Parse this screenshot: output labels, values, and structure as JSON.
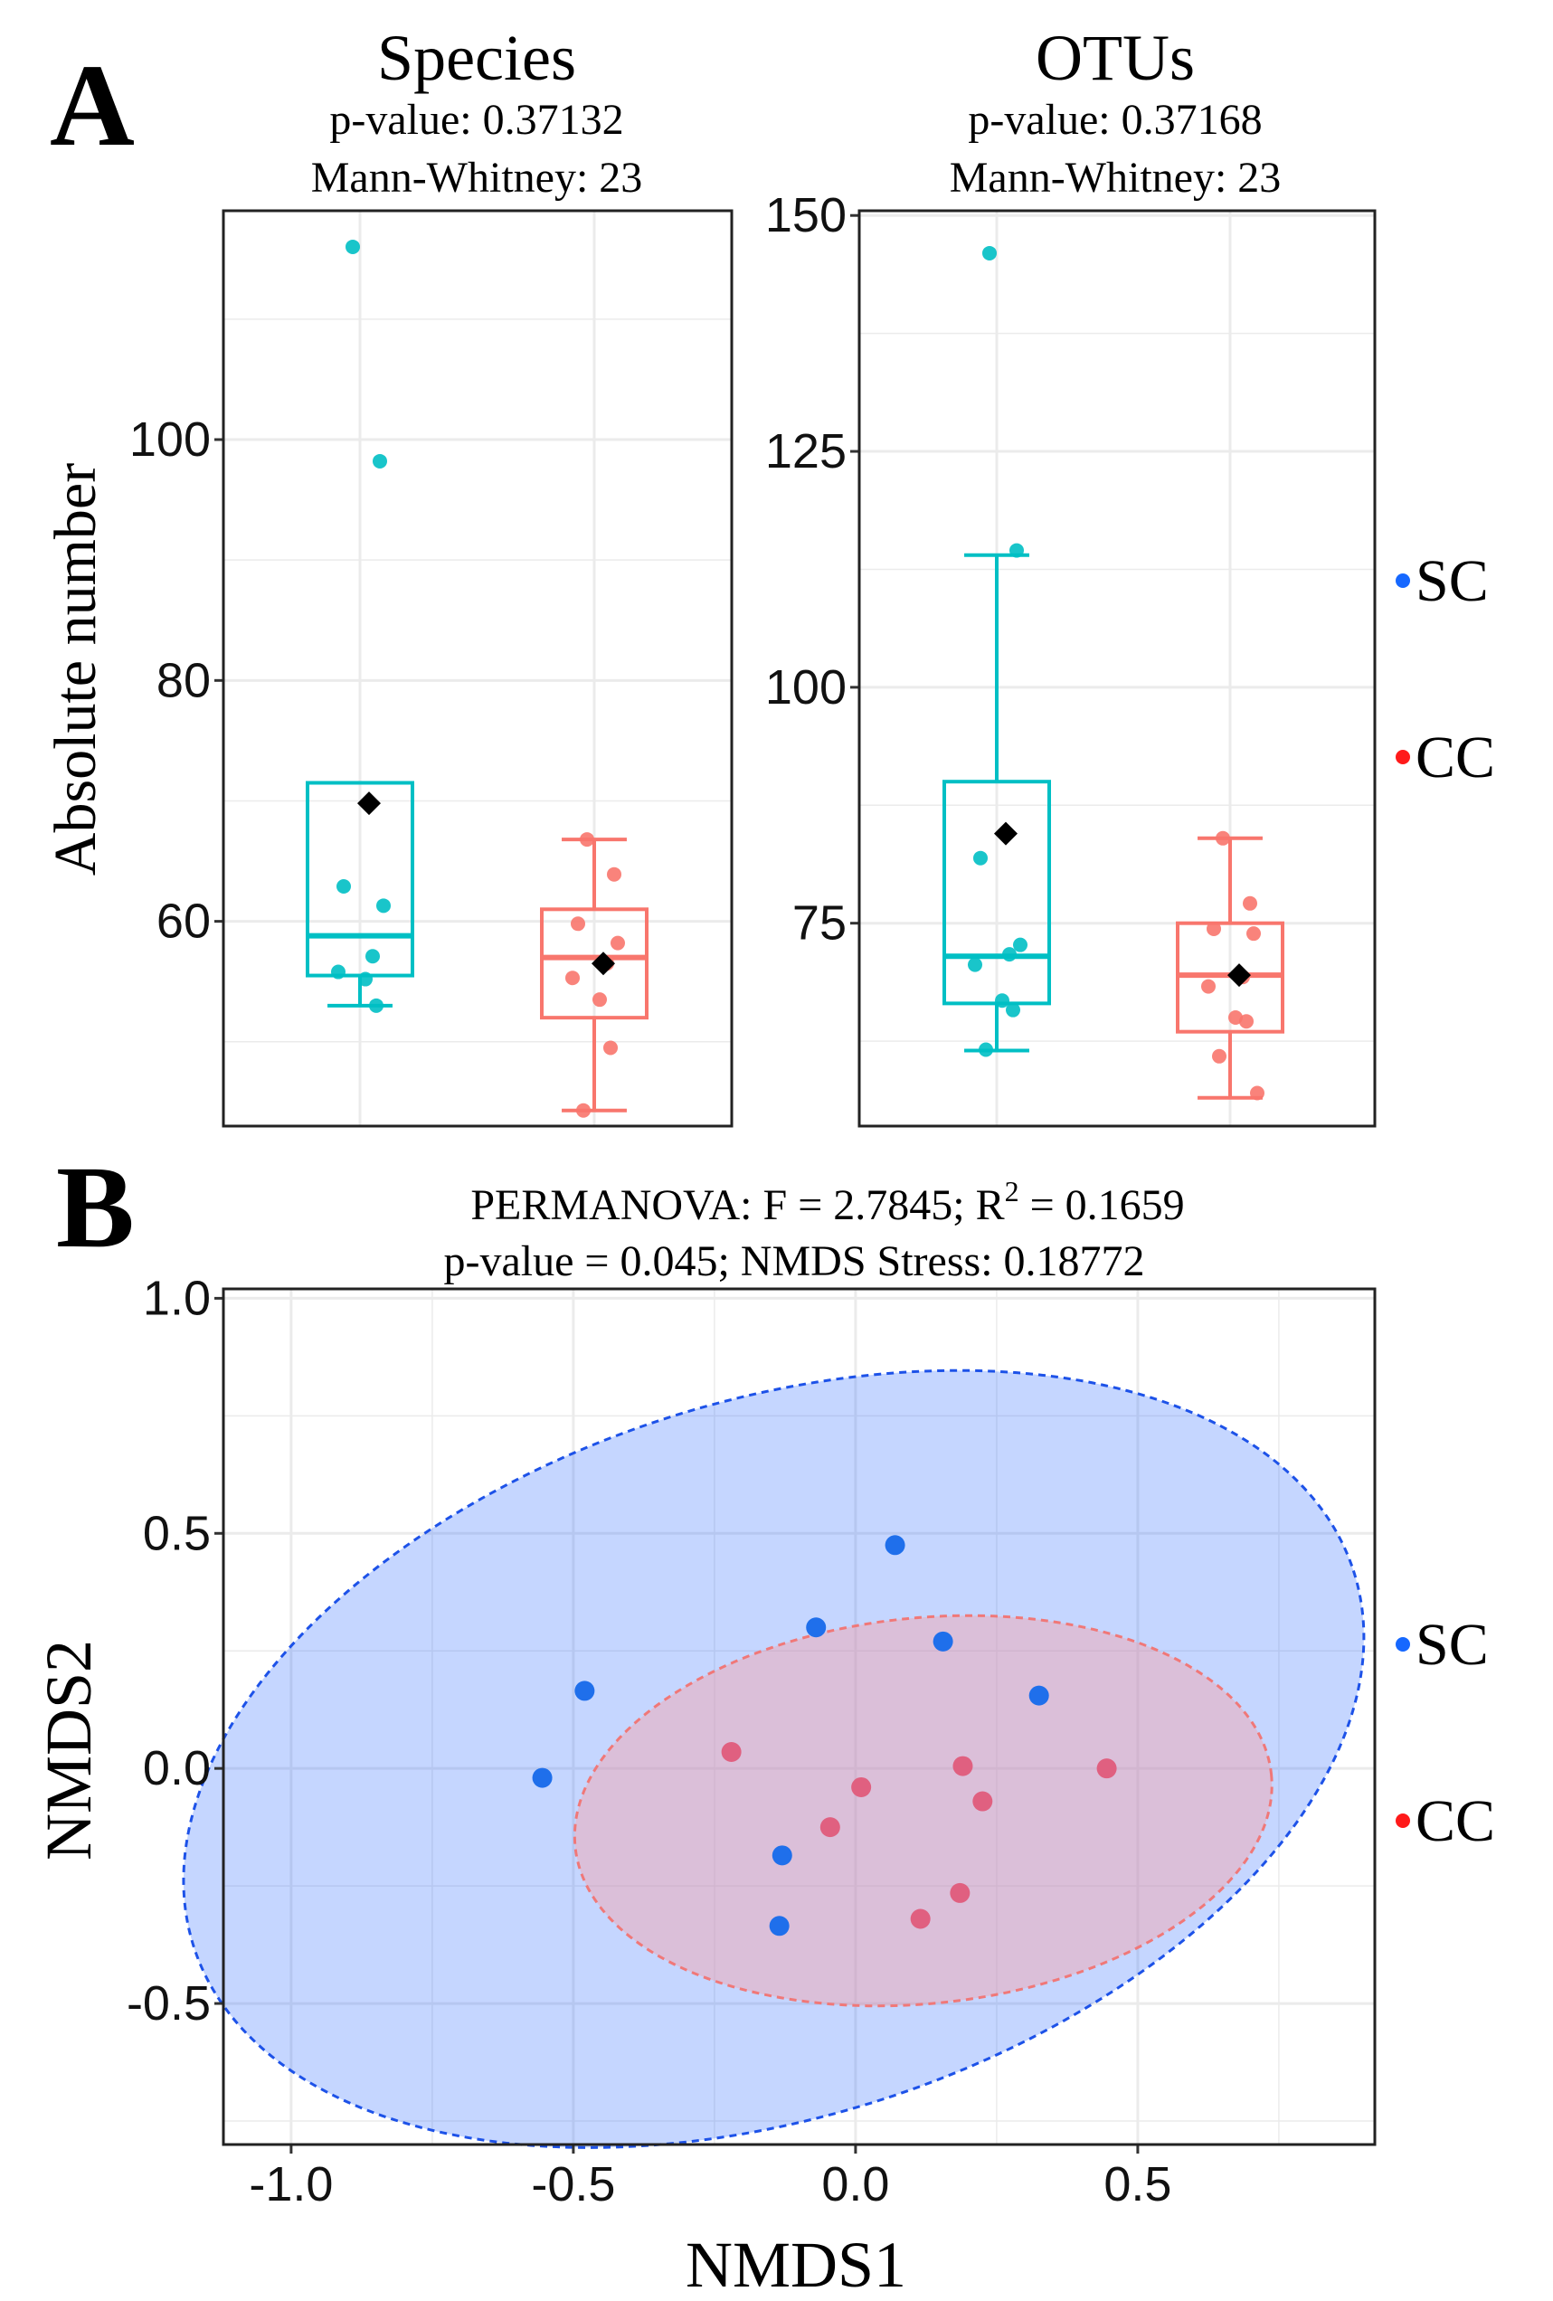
{
  "figure": {
    "panel_a_letter": "A",
    "panel_b_letter": "B",
    "colors": {
      "sc_box": "#00BFC4",
      "cc_box": "#F8766D",
      "sc_point": "#1F6FEB",
      "cc_point": "#E06080",
      "sc_ellipse_fill": "#2F6BFF",
      "cc_ellipse_fill": "#FF9A9A",
      "legend_sc": "#1668FF",
      "legend_cc": "#FF1A1A",
      "mean_marker": "#000000",
      "grid": "#EBEBEB"
    }
  },
  "legend": {
    "items": [
      {
        "label": "SC",
        "color": "#1668FF"
      },
      {
        "label": "CC",
        "color": "#FF1A1A"
      }
    ]
  },
  "chart_data": [
    {
      "type": "box",
      "title": "Species",
      "subtitle_1": "p-value: 0.37132",
      "subtitle_2": "Mann-Whitney: 23",
      "ylabel": "Absolute number",
      "xlabel": "",
      "ylim": [
        43,
        119
      ],
      "yticks": [
        60,
        80,
        100
      ],
      "grid": true,
      "groups": [
        {
          "name": "SC",
          "color": "#00BFC4",
          "q1": 55.5,
          "median": 58.8,
          "q3": 71.5,
          "whisker_low": 53,
          "whisker_high": 71.5,
          "mean": 69.8,
          "points": [
            116,
            98.2,
            62.9,
            61.3,
            57.1,
            55.8,
            55.2,
            53
          ]
        },
        {
          "name": "CC",
          "color": "#F8766D",
          "q1": 52,
          "median": 57,
          "q3": 61,
          "whisker_low": 44.3,
          "whisker_high": 66.8,
          "mean": 56.5,
          "points": [
            66.8,
            63.9,
            59.8,
            58.2,
            56.5,
            55.3,
            53.5,
            49.5,
            44.3
          ]
        }
      ]
    },
    {
      "type": "box",
      "title": "OTUs",
      "subtitle_1": "p-value: 0.37168",
      "subtitle_2": "Mann-Whitney: 23",
      "ylabel": "",
      "xlabel": "",
      "ylim": [
        53.5,
        150.5
      ],
      "yticks": [
        75,
        100,
        125,
        150
      ],
      "grid": true,
      "groups": [
        {
          "name": "SC",
          "color": "#00BFC4",
          "q1": 66.5,
          "median": 71.5,
          "q3": 90,
          "whisker_low": 61.5,
          "whisker_high": 114,
          "mean": 84.5,
          "points": [
            146,
            114.5,
            81.9,
            72.7,
            71.7,
            70.6,
            66.8,
            65.8,
            61.6
          ]
        },
        {
          "name": "CC",
          "color": "#F8766D",
          "q1": 63.5,
          "median": 69.5,
          "q3": 75,
          "whisker_low": 56.5,
          "whisker_high": 84,
          "mean": 69.5,
          "points": [
            84,
            77.1,
            74.4,
            73.9,
            69.3,
            68.3,
            65,
            64.6,
            60.9,
            57
          ]
        }
      ]
    },
    {
      "type": "scatter",
      "title_1": "PERMANOVA: F = 2.7845; R",
      "title_sup": "2",
      "title_1_end": " = 0.1659",
      "title_2": "p-value = 0.045; NMDS Stress: 0.18772",
      "xlabel": "NMDS1",
      "ylabel": "NMDS2",
      "xlim": [
        -1.12,
        0.92
      ],
      "ylim": [
        -0.8,
        1.02
      ],
      "xticks": [
        -1.0,
        -0.5,
        0.0,
        0.5
      ],
      "xtick_labels": [
        "-1.0",
        "-0.5",
        "0.0",
        "0.5"
      ],
      "yticks": [
        -0.5,
        0.0,
        0.5,
        1.0
      ],
      "ytick_labels": [
        "-0.5",
        "0.0",
        "0.5",
        "1.0"
      ],
      "grid": true,
      "ellipses": [
        {
          "group": "SC",
          "cx": -0.145,
          "cy": 0.02,
          "rx": 1.08,
          "ry": 0.76,
          "angle_deg": 18
        },
        {
          "group": "CC",
          "cx": 0.12,
          "cy": -0.09,
          "rx": 0.62,
          "ry": 0.41,
          "angle_deg": 6
        }
      ],
      "series": [
        {
          "name": "SC",
          "points": [
            [
              0.07,
              0.475
            ],
            [
              -0.07,
              0.3
            ],
            [
              0.155,
              0.27
            ],
            [
              -0.48,
              0.165
            ],
            [
              0.325,
              0.155
            ],
            [
              -0.555,
              -0.02
            ],
            [
              -0.13,
              -0.185
            ],
            [
              -0.135,
              -0.335
            ]
          ]
        },
        {
          "name": "CC",
          "points": [
            [
              -0.22,
              0.035
            ],
            [
              0.19,
              0.005
            ],
            [
              0.445,
              0.0
            ],
            [
              0.01,
              -0.04
            ],
            [
              0.225,
              -0.07
            ],
            [
              -0.045,
              -0.125
            ],
            [
              0.185,
              -0.265
            ],
            [
              0.115,
              -0.32
            ]
          ]
        }
      ]
    }
  ]
}
